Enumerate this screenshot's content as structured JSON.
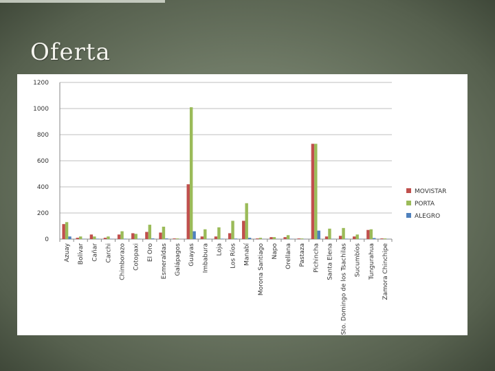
{
  "slide": {
    "title": "Oferta"
  },
  "colors": {
    "movistar": "#c0504d",
    "porta": "#9bbb59",
    "alegro": "#4f81bd",
    "grid": "#bfbfbf"
  },
  "chart_data": {
    "type": "bar",
    "title": "",
    "xlabel": "",
    "ylabel": "",
    "ylim": [
      0,
      1200
    ],
    "yticks": [
      0,
      200,
      400,
      600,
      800,
      1000,
      1200
    ],
    "grid": true,
    "legend_position": "right",
    "categories": [
      "Azuay",
      "Bolívar",
      "Cañar",
      "Carchi",
      "Chimborazo",
      "Cotopaxi",
      "El Oro",
      "Esmeraldas",
      "Galápagos",
      "Guayas",
      "Imbabura",
      "Loja",
      "Los Ríos",
      "Manabí",
      "Morona Santiago",
      "Napo",
      "Orellana",
      "Pastaza",
      "Pichincha",
      "Santa Elena",
      "Sto. Domingo de los Tsachilas",
      "Sucumbíos",
      "Tungurahua",
      "Zamora Chinchipe"
    ],
    "series": [
      {
        "name": "MOVISTAR",
        "values": [
          115,
          10,
          35,
          10,
          35,
          45,
          55,
          50,
          5,
          420,
          20,
          20,
          45,
          140,
          5,
          15,
          15,
          5,
          730,
          20,
          25,
          20,
          70,
          5
        ]
      },
      {
        "name": "PORTA",
        "values": [
          130,
          20,
          20,
          20,
          60,
          40,
          110,
          95,
          5,
          1010,
          75,
          90,
          140,
          275,
          10,
          15,
          30,
          5,
          730,
          80,
          85,
          35,
          75,
          5
        ]
      },
      {
        "name": "ALEGRO",
        "values": [
          20,
          2,
          3,
          2,
          3,
          3,
          5,
          5,
          0,
          60,
          2,
          3,
          4,
          10,
          1,
          1,
          2,
          1,
          65,
          2,
          3,
          2,
          8,
          1
        ]
      }
    ]
  }
}
